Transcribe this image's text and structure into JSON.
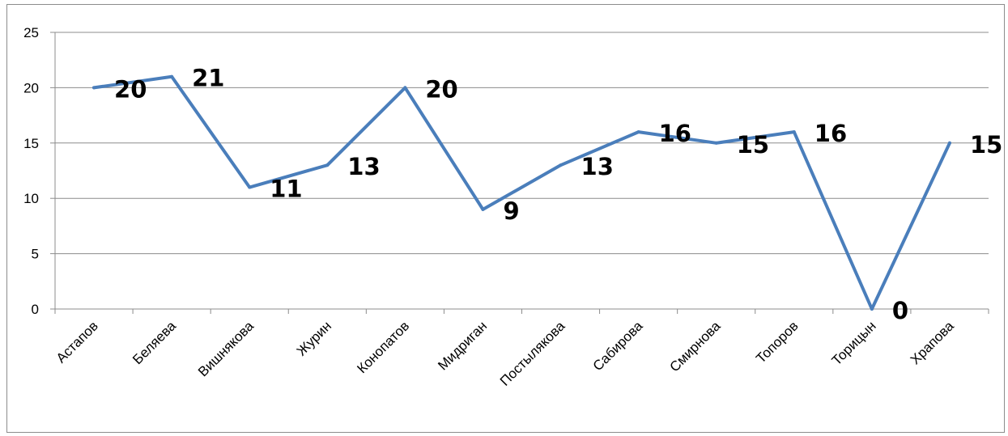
{
  "chart_data": {
    "type": "line",
    "title": "",
    "xlabel": "",
    "ylabel": "",
    "categories": [
      "Астапов",
      "Беляева",
      "Вишнякова",
      "Журин",
      "Конопатов",
      "Мидриган",
      "Постылякова",
      "Сабирова",
      "Смирнова",
      "Топоров",
      "Торицын",
      "Храпова"
    ],
    "series": [
      {
        "values": [
          20,
          21,
          11,
          13,
          20,
          9,
          13,
          16,
          15,
          16,
          0,
          15
        ],
        "data_labels": [
          "20",
          "21",
          "11",
          "13",
          "20",
          "9",
          "13",
          "16",
          "15",
          "16",
          "0",
          "15"
        ],
        "color": "#4a7ebb"
      }
    ],
    "ylim": [
      0,
      25
    ],
    "yticks": [
      0,
      5,
      10,
      15,
      20,
      25
    ],
    "ytick_labels": [
      "0",
      "5",
      "10",
      "15",
      "20",
      "25"
    ],
    "grid": true,
    "legend": "none",
    "colors": {
      "gridline": "#8c8c8c",
      "axis": "#8c8c8c",
      "text": "#000000"
    }
  }
}
